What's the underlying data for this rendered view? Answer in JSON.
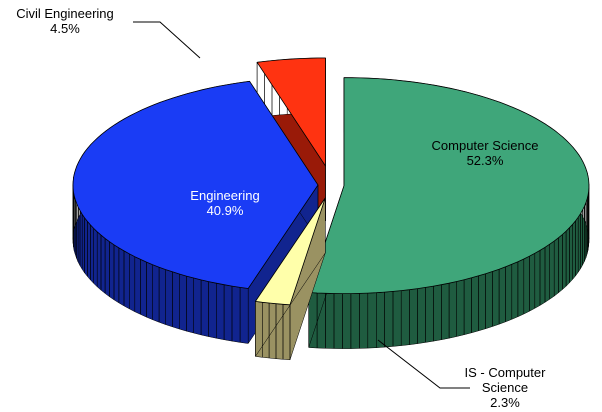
{
  "chart_data": {
    "type": "pie",
    "categories": [
      "Computer Science",
      "IS - Computer Science",
      "Engineering",
      "Civil Engineering"
    ],
    "values": [
      52.3,
      2.3,
      40.9,
      4.5
    ],
    "value_labels": [
      "52.3%",
      "2.3%",
      "40.9%",
      "4.5%"
    ],
    "colors": [
      "#3fa67a",
      "#ffffaa",
      "#1a3cf5",
      "#ff3311"
    ],
    "side_colors": [
      "#1f5c40",
      "#9a9262",
      "#11248f",
      "#991a08"
    ]
  }
}
